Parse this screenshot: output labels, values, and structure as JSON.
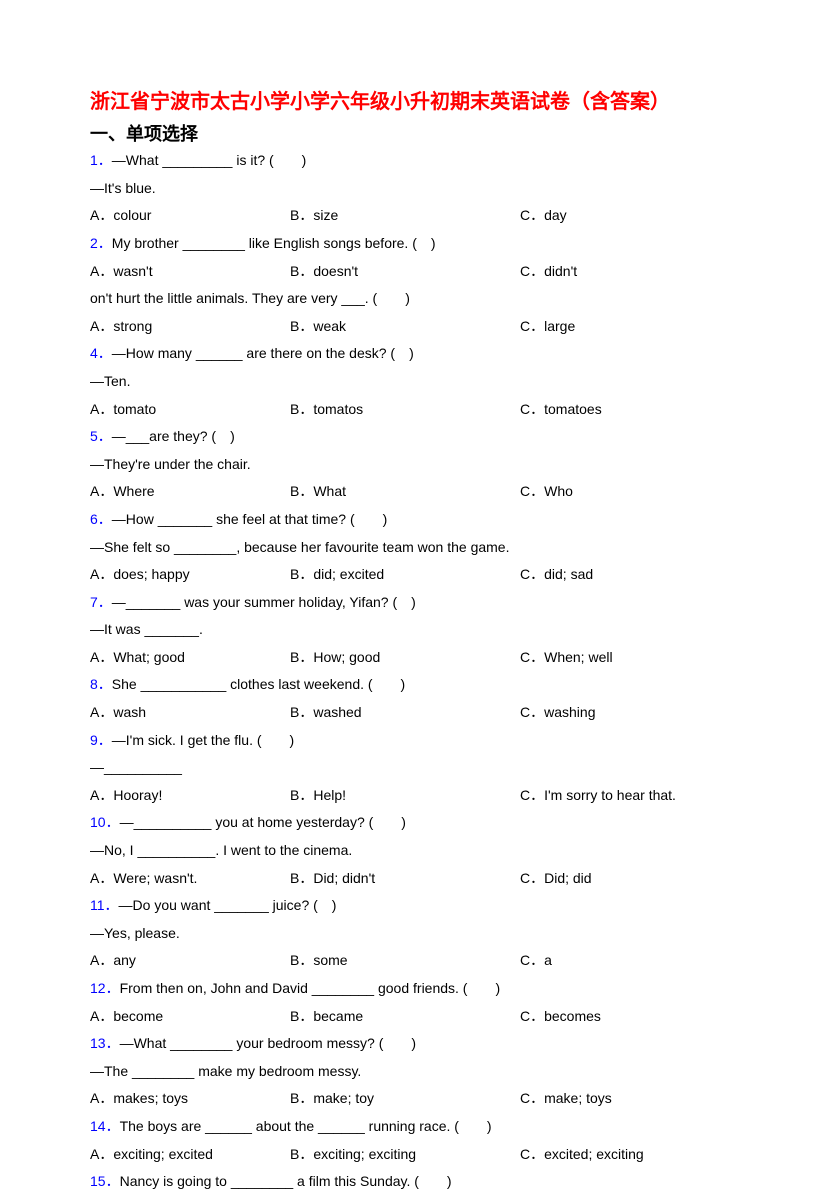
{
  "title": "浙江省宁波市太古小学小学六年级小升初期末英语试卷（含答案）",
  "section_header": "一、单项选择",
  "colors": {
    "title_color": "#ff0000",
    "question_num_color": "#0000ff",
    "text_color": "#000000",
    "background": "#ffffff"
  },
  "questions": [
    {
      "num": "1．",
      "text": "—What _________ is it? (　　)",
      "answer": "—It's blue.",
      "options": {
        "a": "colour",
        "b": "size",
        "c": "day"
      }
    },
    {
      "num": "2．",
      "text": "My brother ________ like English songs before. (　)",
      "answer": "",
      "options": {
        "a": "wasn't",
        "b": "doesn't",
        "c": "didn't"
      }
    },
    {
      "num": "",
      "text": "on't hurt the little animals. They are very ___. (　　)",
      "answer": "",
      "options": {
        "a": "strong",
        "b": "weak",
        "c": "large"
      }
    },
    {
      "num": "4．",
      "text": "—How many ______ are there on the desk? (　)",
      "answer": "—Ten.",
      "options": {
        "a": "tomato",
        "b": "tomatos",
        "c": "tomatoes"
      }
    },
    {
      "num": "5．",
      "text": "—___are they? (　)",
      "answer": "—They're under the chair.",
      "options": {
        "a": "Where",
        "b": "What",
        "c": "Who"
      }
    },
    {
      "num": "6．",
      "text": "—How _______ she feel at that time? (　　)",
      "answer": "—She felt so ________, because her favourite team won the game.",
      "options": {
        "a": "does; happy",
        "b": "did; excited",
        "c": "did; sad"
      }
    },
    {
      "num": "7．",
      "text": "—_______ was your summer holiday, Yifan? (　)",
      "answer": "—It was _______.",
      "options": {
        "a": "What; good",
        "b": "How;  good",
        "c": "When;  well"
      }
    },
    {
      "num": "8．",
      "text": "She ___________ clothes last weekend. (　　)",
      "answer": "",
      "options": {
        "a": "wash",
        "b": "washed",
        "c": "washing"
      }
    },
    {
      "num": "9．",
      "text": "—I'm sick. I get the flu. (　　)",
      "answer": "—__________",
      "options": {
        "a": "Hooray!",
        "b": "Help!",
        "c": "I'm sorry to hear that."
      }
    },
    {
      "num": "10．",
      "text": "—__________ you at home yesterday? (　　)",
      "answer": "—No, I __________. I went to the cinema.",
      "options": {
        "a": "Were; wasn't.",
        "b": "Did; didn't",
        "c": "Did; did"
      }
    },
    {
      "num": "11．",
      "text": "—Do you want _______ juice? (　)",
      "answer": "—Yes, please.",
      "options": {
        "a": "any",
        "b": "some",
        "c": "a"
      }
    },
    {
      "num": "12．",
      "text": "From then on, John and David ________ good friends. (　　)",
      "answer": "",
      "options": {
        "a": "become",
        "b": "became",
        "c": "becomes"
      }
    },
    {
      "num": "13．",
      "text": "—What ________ your bedroom messy? (　　)",
      "answer": "—The ________ make my bedroom messy.",
      "options": {
        "a": "makes; toys",
        "b": "make; toy",
        "c": "make; toys"
      }
    },
    {
      "num": "14．",
      "text": "The boys are ______ about the ______ running race. (　　)",
      "answer": "",
      "options": {
        "a": "exciting; excited",
        "b": "exciting; exciting",
        "c": "excited; exciting"
      }
    },
    {
      "num": "15．",
      "text": "Nancy is going to ________ a film this Sunday. (　　)",
      "answer": "",
      "options": null
    }
  ]
}
